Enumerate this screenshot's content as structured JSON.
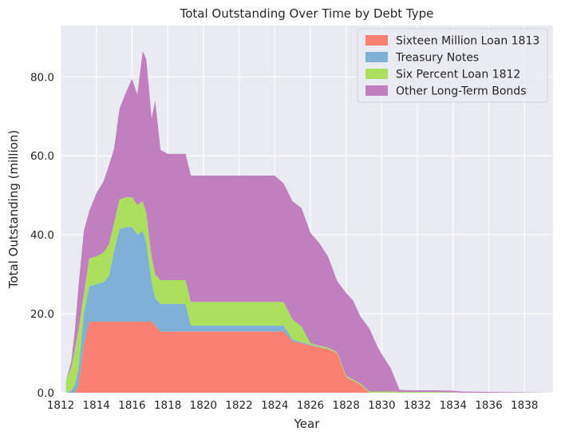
{
  "chart_data": {
    "type": "area",
    "stacked": true,
    "title": "Total Outstanding Over Time by Debt Type",
    "xlabel": "Year",
    "ylabel": "Total Outstanding (million)",
    "xlim": [
      1812,
      1839.6
    ],
    "ylim": [
      0,
      93
    ],
    "x_ticks": [
      "1812",
      "1814",
      "1816",
      "1818",
      "1820",
      "1822",
      "1824",
      "1826",
      "1828",
      "1830",
      "1832",
      "1834",
      "1836",
      "1838"
    ],
    "y_ticks": [
      "0.0",
      "20.0",
      "40.0",
      "60.0",
      "80.0"
    ],
    "grid": true,
    "legend_position": "top-right",
    "x": [
      1812.3,
      1812.6,
      1812.8,
      1813.0,
      1813.3,
      1813.6,
      1814.0,
      1814.4,
      1814.7,
      1815.0,
      1815.3,
      1815.7,
      1816.0,
      1816.3,
      1816.6,
      1816.8,
      1817.1,
      1817.3,
      1817.6,
      1818.0,
      1818.5,
      1819.0,
      1819.3,
      1820.0,
      1821.0,
      1822.0,
      1823.0,
      1824.0,
      1824.5,
      1825.0,
      1825.5,
      1826.0,
      1826.5,
      1827.0,
      1827.5,
      1828.0,
      1828.4,
      1828.8,
      1829.3,
      1829.8,
      1830.2,
      1830.5,
      1831.0,
      1832.0,
      1833.0,
      1834.0,
      1834.5,
      1836.0,
      1838.0,
      1839.5
    ],
    "series": [
      {
        "name": "Sixteen Million Loan 1813",
        "color": "#fa8072",
        "values": [
          0,
          0,
          0,
          2,
          12,
          18,
          18,
          18,
          18,
          18,
          18,
          18,
          18,
          18,
          18,
          18,
          18,
          17,
          15.5,
          15.5,
          15.5,
          15.5,
          15.5,
          15.5,
          15.5,
          15.5,
          15.5,
          15.5,
          15.5,
          13,
          12.5,
          12,
          11.5,
          11,
          10,
          4,
          3,
          2,
          0,
          0,
          0,
          0,
          0,
          0,
          0,
          0,
          0,
          0,
          0,
          0
        ]
      },
      {
        "name": "Treasury Notes",
        "color": "#7fb0d6",
        "values": [
          0,
          0.5,
          2,
          4,
          8,
          9,
          9.5,
          10,
          11.5,
          18,
          23.5,
          24,
          24,
          22,
          23,
          20,
          10,
          7,
          7,
          7,
          7,
          7,
          1.5,
          1.5,
          1.5,
          1.5,
          1.5,
          1.5,
          1.5,
          0.5,
          0.3,
          0.2,
          0.1,
          0.1,
          0,
          0,
          0,
          0,
          0,
          0,
          0,
          0,
          0,
          0,
          0,
          0,
          0,
          0,
          0,
          0
        ]
      },
      {
        "name": "Six Percent Loan 1812",
        "color": "#addf5e",
        "values": [
          3,
          6,
          9,
          10,
          5,
          7,
          7,
          7.5,
          8,
          7,
          7.5,
          7.5,
          7.5,
          7.5,
          7.5,
          7.5,
          6.5,
          6,
          6,
          6,
          6,
          6,
          6,
          6,
          6,
          6,
          6,
          6,
          6,
          5,
          4,
          0.3,
          0.3,
          0.3,
          0.3,
          0.3,
          0.3,
          0.3,
          0.3,
          0.3,
          0.3,
          0.3,
          0.2,
          0.2,
          0.2,
          0.1,
          0,
          0,
          0,
          0
        ]
      },
      {
        "name": "Other Long-Term Bonds",
        "color": "#c080c0",
        "values": [
          0,
          1.5,
          5,
          11,
          16,
          12,
          16,
          18,
          20,
          19,
          23,
          27,
          30,
          28,
          38,
          39,
          35,
          44,
          33,
          32,
          32,
          32,
          32,
          32,
          32,
          32,
          32,
          32,
          30,
          30,
          30,
          28,
          26,
          23,
          18,
          21,
          20,
          17,
          16,
          11,
          8,
          6,
          0.5,
          0.4,
          0.4,
          0.4,
          0.3,
          0.2,
          0.1,
          0
        ]
      }
    ]
  }
}
